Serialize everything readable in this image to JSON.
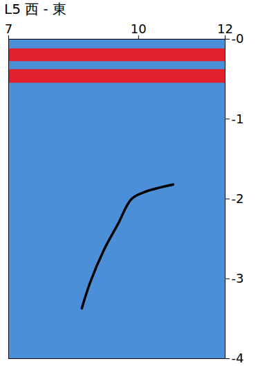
{
  "chart_data": {
    "type": "line",
    "title": "L5 西 - 東",
    "x": [
      8.69,
      8.88,
      9.2,
      9.52,
      9.84,
      10.16,
      10.8
    ],
    "values": [
      -3.37,
      -3.05,
      -2.64,
      -2.32,
      -2.0,
      -1.91,
      -1.82
    ],
    "color": "#000000",
    "xlim": [
      7,
      12
    ],
    "xticks": [
      7,
      10,
      12
    ],
    "ylim": [
      -4,
      0
    ],
    "yticks": [
      {
        "value": 0,
        "label": "-0"
      },
      -1,
      -2,
      -3,
      -4
    ],
    "bands": [
      {
        "y1": -0.12,
        "y2": -0.28,
        "color": "#e0202a"
      },
      {
        "y1": -0.38,
        "y2": -0.55,
        "color": "#e0202a"
      }
    ]
  }
}
